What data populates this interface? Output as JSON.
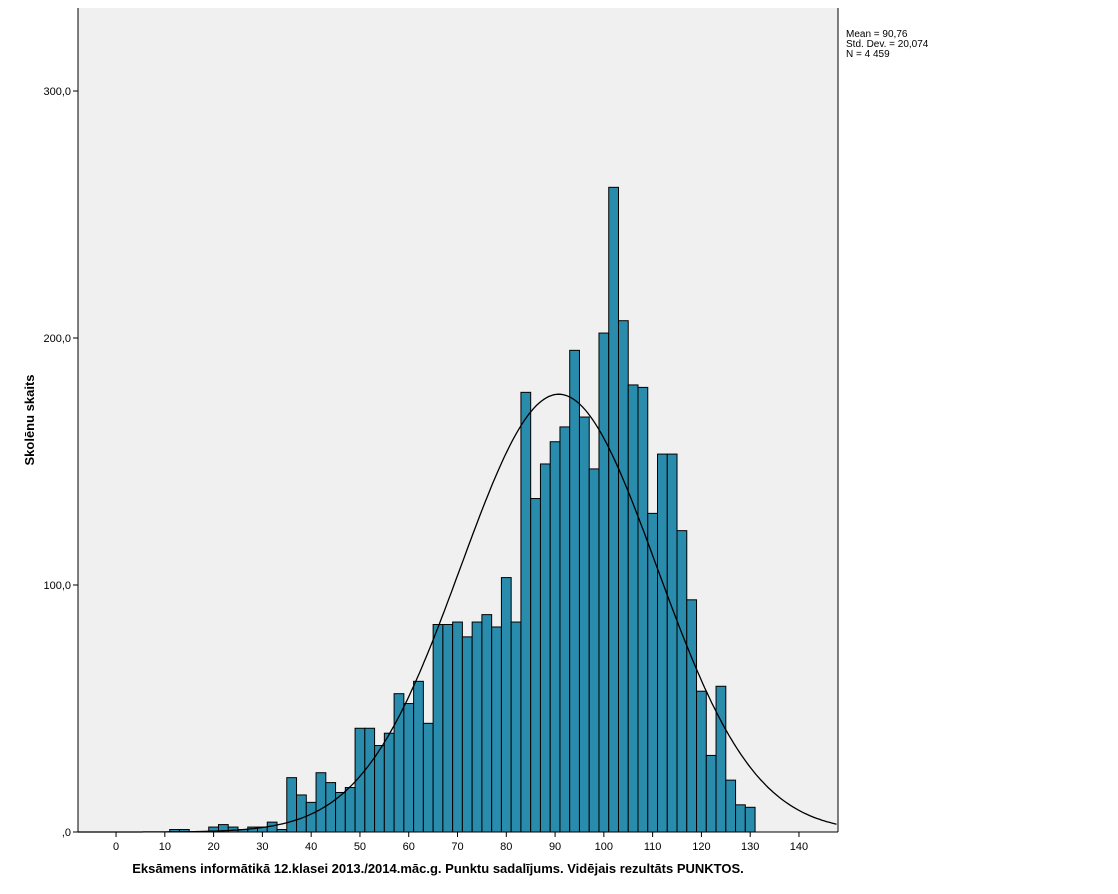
{
  "chart_data": {
    "type": "bar",
    "subtype": "histogram",
    "xlabel": "Eksāmens informātikā 12.klasei 2013./2014.māc.g. Punktu sadalījums. Vidējais rezultāts PUNKTOS.",
    "ylabel": "Skolēnu skaits",
    "xlim": [
      -7.8,
      148
    ],
    "ylim": [
      0,
      333.6
    ],
    "x_ticks": [
      0,
      10,
      20,
      30,
      40,
      50,
      60,
      70,
      80,
      90,
      100,
      110,
      120,
      130,
      140
    ],
    "x_tick_labels": [
      "0",
      "10",
      "20",
      "30",
      "40",
      "50",
      "60",
      "70",
      "80",
      "90",
      "100",
      "110",
      "120",
      "130",
      "140"
    ],
    "y_ticks": [
      0,
      100,
      200,
      300
    ],
    "y_tick_labels": [
      ",0",
      "100,0",
      "200,0",
      "300,0"
    ],
    "bin_width": 2,
    "bin_starts": [
      11,
      13,
      15,
      17,
      19,
      21,
      23,
      25,
      27,
      29,
      31,
      33,
      35,
      37,
      39,
      41,
      43,
      45,
      47,
      49,
      51,
      53,
      55,
      57,
      59,
      61,
      63,
      65,
      67,
      69,
      71,
      73,
      75,
      77,
      79,
      81,
      83,
      85,
      87,
      89,
      91,
      93,
      95,
      97,
      99,
      101,
      103,
      105,
      107,
      109,
      111,
      113,
      115,
      117,
      119,
      121,
      123,
      125,
      127,
      129
    ],
    "values": [
      1,
      1,
      0,
      0,
      2,
      3,
      2,
      1,
      2,
      2,
      4,
      1,
      22,
      15,
      12,
      24,
      20,
      16,
      18,
      42,
      42,
      35,
      40,
      56,
      52,
      61,
      44,
      84,
      84,
      85,
      79,
      85,
      88,
      83,
      103,
      85,
      178,
      135,
      149,
      158,
      164,
      195,
      168,
      147,
      202,
      261,
      207,
      181,
      180,
      129,
      153,
      153,
      122,
      94,
      57,
      31,
      59,
      21,
      11,
      10
    ],
    "normal_curve": {
      "mean": 90.76,
      "sd": 20.074,
      "n": 4459
    },
    "legend": {
      "placement": "top-right",
      "lines": [
        "Mean = 90,76",
        "Std. Dev. = 20,074",
        "N = 4 459"
      ]
    },
    "colors": {
      "bar": "#2a8cad",
      "plot_bg": "#f0f0f0",
      "curve": "#000000"
    },
    "grid": false
  }
}
